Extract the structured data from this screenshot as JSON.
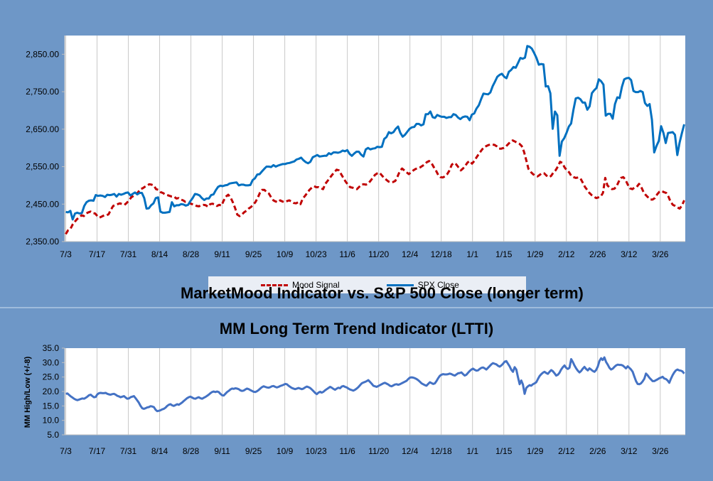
{
  "chart_data": [
    {
      "type": "line",
      "title": "MarketMood Indicator vs. S&P 500 Close (longer term)",
      "x_tick_labels": [
        "7/3",
        "7/17",
        "7/31",
        "8/14",
        "8/28",
        "9/11",
        "9/25",
        "10/9",
        "10/23",
        "11/6",
        "11/20",
        "12/4",
        "12/18",
        "1/1",
        "1/15",
        "1/29",
        "2/12",
        "2/26",
        "3/12",
        "3/26"
      ],
      "y_tick_labels": [
        "2,350.00",
        "2,450.00",
        "2,550.00",
        "2,650.00",
        "2,750.00",
        "2,850.00"
      ],
      "ylim": [
        2350,
        2900
      ],
      "grid": "vertical",
      "legend": "bottom",
      "series": [
        {
          "name": "SPX Close",
          "color": "#0070c0",
          "style": "solid",
          "values": [
            2429,
            2428,
            2432,
            2409,
            2425,
            2427,
            2425,
            2426,
            2445,
            2455,
            2459,
            2460,
            2459,
            2474,
            2472,
            2473,
            2472,
            2469,
            2475,
            2474,
            2475,
            2477,
            2470,
            2477,
            2475,
            2477,
            2480,
            2481,
            2473,
            2477,
            2481,
            2476,
            2480,
            2480,
            2466,
            2438,
            2439,
            2447,
            2452,
            2466,
            2468,
            2430,
            2427,
            2427,
            2428,
            2429,
            2455,
            2444,
            2447,
            2447,
            2450,
            2449,
            2446,
            2448,
            2458,
            2466,
            2477,
            2476,
            2473,
            2466,
            2461,
            2465,
            2465,
            2474,
            2476,
            2487,
            2496,
            2499,
            2498,
            2500,
            2501,
            2505,
            2506,
            2507,
            2508,
            2500,
            2502,
            2502,
            2500,
            2500,
            2501,
            2514,
            2519,
            2529,
            2530,
            2537,
            2544,
            2550,
            2550,
            2549,
            2554,
            2550,
            2553,
            2555,
            2557,
            2557,
            2559,
            2560,
            2562,
            2564,
            2569,
            2571,
            2574,
            2567,
            2562,
            2559,
            2563,
            2575,
            2578,
            2581,
            2577,
            2578,
            2579,
            2579,
            2586,
            2583,
            2588,
            2588,
            2587,
            2589,
            2593,
            2591,
            2594,
            2584,
            2579,
            2585,
            2590,
            2590,
            2582,
            2577,
            2596,
            2600,
            2596,
            2598,
            2599,
            2603,
            2602,
            2603,
            2624,
            2629,
            2642,
            2639,
            2642,
            2651,
            2657,
            2640,
            2630,
            2635,
            2643,
            2651,
            2655,
            2656,
            2664,
            2664,
            2660,
            2663,
            2690,
            2690,
            2697,
            2682,
            2680,
            2688,
            2685,
            2683,
            2683,
            2680,
            2682,
            2682,
            2690,
            2688,
            2681,
            2677,
            2682,
            2684,
            2683,
            2674,
            2689,
            2692,
            2705,
            2714,
            2730,
            2745,
            2744,
            2743,
            2748,
            2765,
            2777,
            2790,
            2795,
            2798,
            2790,
            2786,
            2803,
            2808,
            2816,
            2814,
            2827,
            2840,
            2838,
            2841,
            2872,
            2870,
            2865,
            2853,
            2840,
            2822,
            2824,
            2823,
            2764,
            2765,
            2746,
            2651,
            2697,
            2687,
            2579,
            2617,
            2626,
            2640,
            2657,
            2665,
            2702,
            2732,
            2734,
            2730,
            2721,
            2721,
            2702,
            2711,
            2746,
            2754,
            2760,
            2783,
            2778,
            2769,
            2686,
            2691,
            2691,
            2678,
            2717,
            2735,
            2733,
            2763,
            2783,
            2786,
            2787,
            2781,
            2752,
            2749,
            2749,
            2752,
            2749,
            2720,
            2712,
            2717,
            2675,
            2588,
            2605,
            2619,
            2658,
            2640,
            2613,
            2640,
            2641,
            2642,
            2635,
            2581,
            2614,
            2640,
            2663
          ]
        },
        {
          "name": "Mood Signal",
          "color": "#c00000",
          "style": "dashed",
          "values": [
            2370,
            2380,
            2383,
            2395,
            2403,
            2410,
            2415,
            2420,
            2418,
            2425,
            2428,
            2430,
            2426,
            2425,
            2418,
            2414,
            2417,
            2420,
            2420,
            2423,
            2435,
            2445,
            2448,
            2450,
            2452,
            2450,
            2448,
            2453,
            2460,
            2468,
            2472,
            2476,
            2481,
            2490,
            2492,
            2496,
            2499,
            2503,
            2502,
            2500,
            2490,
            2488,
            2482,
            2480,
            2476,
            2474,
            2472,
            2470,
            2470,
            2465,
            2466,
            2462,
            2460,
            2456,
            2456,
            2452,
            2450,
            2448,
            2445,
            2444,
            2447,
            2448,
            2447,
            2443,
            2450,
            2451,
            2449,
            2445,
            2448,
            2446,
            2460,
            2470,
            2475,
            2468,
            2455,
            2440,
            2422,
            2418,
            2422,
            2428,
            2432,
            2438,
            2442,
            2448,
            2455,
            2466,
            2480,
            2488,
            2488,
            2482,
            2478,
            2468,
            2460,
            2457,
            2455,
            2460,
            2457,
            2455,
            2458,
            2460,
            2457,
            2453,
            2452,
            2455,
            2450,
            2465,
            2472,
            2480,
            2488,
            2494,
            2498,
            2495,
            2495,
            2492,
            2490,
            2504,
            2512,
            2520,
            2528,
            2535,
            2542,
            2540,
            2530,
            2520,
            2510,
            2502,
            2495,
            2494,
            2492,
            2490,
            2496,
            2502,
            2503,
            2502,
            2505,
            2512,
            2520,
            2528,
            2532,
            2534,
            2527,
            2520,
            2515,
            2510,
            2508,
            2509,
            2512,
            2524,
            2538,
            2545,
            2540,
            2535,
            2530,
            2535,
            2540,
            2544,
            2545,
            2548,
            2552,
            2556,
            2562,
            2565,
            2560,
            2549,
            2540,
            2528,
            2522,
            2521,
            2524,
            2530,
            2540,
            2555,
            2560,
            2556,
            2548,
            2540,
            2545,
            2552,
            2561,
            2565,
            2558,
            2565,
            2575,
            2584,
            2592,
            2600,
            2604,
            2607,
            2609,
            2609,
            2608,
            2604,
            2598,
            2598,
            2600,
            2604,
            2610,
            2616,
            2620,
            2617,
            2614,
            2611,
            2605,
            2590,
            2568,
            2544,
            2536,
            2530,
            2526,
            2524,
            2528,
            2533,
            2532,
            2526,
            2522,
            2525,
            2534,
            2540,
            2550,
            2563,
            2560,
            2548,
            2540,
            2535,
            2525,
            2522,
            2520,
            2521,
            2519,
            2508,
            2496,
            2488,
            2480,
            2474,
            2470,
            2466,
            2468,
            2470,
            2480,
            2520,
            2500,
            2494,
            2490,
            2491,
            2497,
            2510,
            2520,
            2522,
            2515,
            2502,
            2492,
            2490,
            2494,
            2496,
            2504,
            2495,
            2482,
            2474,
            2468,
            2462,
            2462,
            2466,
            2476,
            2483,
            2485,
            2482,
            2480,
            2470,
            2456,
            2448,
            2445,
            2441,
            2438,
            2446,
            2460
          ]
        }
      ]
    },
    {
      "type": "line",
      "title": "MM Long Term Trend Indicator (LTTI)",
      "ylabel": "MM High/Low (+/-8)",
      "x_tick_labels": [
        "7/3",
        "7/17",
        "7/31",
        "8/14",
        "8/28",
        "9/11",
        "9/25",
        "10/9",
        "10/23",
        "11/6",
        "11/20",
        "12/4",
        "12/18",
        "1/1",
        "1/15",
        "1/29",
        "2/12",
        "2/26",
        "3/12",
        "3/26"
      ],
      "y_tick_labels": [
        "5.0",
        "10.0",
        "15.0",
        "20.0",
        "25.0",
        "30.0",
        "35.0"
      ],
      "ylim": [
        5,
        35
      ],
      "grid": "vertical",
      "series": [
        {
          "color": "#4472c4",
          "style": "solid",
          "values": [
            19.2,
            19.3,
            18.8,
            18.3,
            17.9,
            17.5,
            17.2,
            17.0,
            17.2,
            17.4,
            17.6,
            17.5,
            17.8,
            18.2,
            18.7,
            18.9,
            18.4,
            18.0,
            18.1,
            19.0,
            19.4,
            19.5,
            19.4,
            19.4,
            19.5,
            19.2,
            19.0,
            18.9,
            19.1,
            19.2,
            18.9,
            18.5,
            18.3,
            18.0,
            18.2,
            18.4,
            17.9,
            17.5,
            17.6,
            18.0,
            18.2,
            18.4,
            17.7,
            16.9,
            16.1,
            15.0,
            14.2,
            14.0,
            14.2,
            14.5,
            14.6,
            14.9,
            14.8,
            14.6,
            13.7,
            13.2,
            13.3,
            13.5,
            13.8,
            14.0,
            14.4,
            15.0,
            15.4,
            15.6,
            15.2,
            15.0,
            15.3,
            15.6,
            15.4,
            15.8,
            16.2,
            16.7,
            17.2,
            17.7,
            18.0,
            18.2,
            17.9,
            17.6,
            17.5,
            17.8,
            18.0,
            17.7,
            17.5,
            17.8,
            18.1,
            18.5,
            18.9,
            19.4,
            19.8,
            20.0,
            19.8,
            20.0,
            19.8,
            19.2,
            18.7,
            18.6,
            19.2,
            19.8,
            20.2,
            20.7,
            21.0,
            20.9,
            21.1,
            21.0,
            20.8,
            20.4,
            20.2,
            20.3,
            20.7,
            21.0,
            20.8,
            20.5,
            20.2,
            19.9,
            19.8,
            20.1,
            20.5,
            21.0,
            21.5,
            21.8,
            21.6,
            21.4,
            21.3,
            21.5,
            21.8,
            21.9,
            21.6,
            21.4,
            21.6,
            21.9,
            22.1,
            22.3,
            22.6,
            22.5,
            22.0,
            21.6,
            21.2,
            21.0,
            20.8,
            21.0,
            21.2,
            21.0,
            20.8,
            21.0,
            21.4,
            21.7,
            21.5,
            21.2,
            20.7,
            20.1,
            19.5,
            19.1,
            19.6,
            19.9,
            19.6,
            19.9,
            20.4,
            20.8,
            21.2,
            21.6,
            21.3,
            20.9,
            20.6,
            21.0,
            21.3,
            21.1,
            21.7,
            21.9,
            21.6,
            21.4,
            21.0,
            20.7,
            20.5,
            20.3,
            20.6,
            21.0,
            21.5,
            22.2,
            22.8,
            23.1,
            23.3,
            23.6,
            23.9,
            23.3,
            22.7,
            22.0,
            21.8,
            21.6,
            21.9,
            22.2,
            22.5,
            22.8,
            23.0,
            22.7,
            22.4,
            22.0,
            21.8,
            22.1,
            22.4,
            22.5,
            22.3,
            22.5,
            22.8,
            23.1,
            23.4,
            23.7,
            24.3,
            24.8,
            24.9,
            24.8,
            24.6,
            24.3,
            23.9,
            23.4,
            22.8,
            22.5,
            22.2,
            22.0,
            22.6,
            23.2,
            22.9,
            22.6,
            22.8,
            23.6,
            24.6,
            25.4,
            25.8,
            26.0,
            25.9,
            25.9,
            26.0,
            26.2,
            26.0,
            25.7,
            25.5,
            25.9,
            26.3,
            26.4,
            26.6,
            26.0,
            25.5,
            25.8,
            26.5,
            27.1,
            27.6,
            27.9,
            27.5,
            27.2,
            27.3,
            27.8,
            28.2,
            28.3,
            28.0,
            27.6,
            28.2,
            28.8,
            29.4,
            29.8,
            29.6,
            29.4,
            28.9,
            28.6,
            29.0,
            29.6,
            30.3,
            30.5,
            29.6,
            28.7,
            27.5,
            26.8,
            28.4,
            27.6,
            25.0,
            22.5,
            23.8,
            22.4,
            19.2,
            21.2,
            21.8,
            22.2,
            22.0,
            22.5,
            22.8,
            23.2,
            24.3,
            25.3,
            26.0,
            26.5,
            26.8,
            26.4,
            26.1,
            26.8,
            27.4,
            27.0,
            26.3,
            25.5,
            25.8,
            26.5,
            27.6,
            28.4,
            29.0,
            28.2,
            27.8,
            28.2,
            31.2,
            30.2,
            29.0,
            28.0,
            27.2,
            26.6,
            27.1,
            27.9,
            28.5,
            27.8,
            27.3,
            28.0,
            27.6,
            27.1,
            26.8,
            27.4,
            28.6,
            30.5,
            31.5,
            30.9,
            31.8,
            30.2,
            29.3,
            28.2,
            27.6,
            27.9,
            28.5,
            29.0,
            29.3,
            29.2,
            29.2,
            29.0,
            28.5,
            28.0,
            28.7,
            28.2,
            27.6,
            26.8,
            25.2,
            23.6,
            22.6,
            22.5,
            22.8,
            23.5,
            24.4,
            26.2,
            25.6,
            24.8,
            24.2,
            23.6,
            23.6,
            23.9,
            24.2,
            24.6,
            24.8,
            25.1,
            24.5,
            24.3,
            23.8,
            23.0,
            24.4,
            25.6,
            26.6,
            27.3,
            27.6,
            27.3,
            27.2,
            26.9,
            26.2
          ]
        }
      ]
    }
  ]
}
